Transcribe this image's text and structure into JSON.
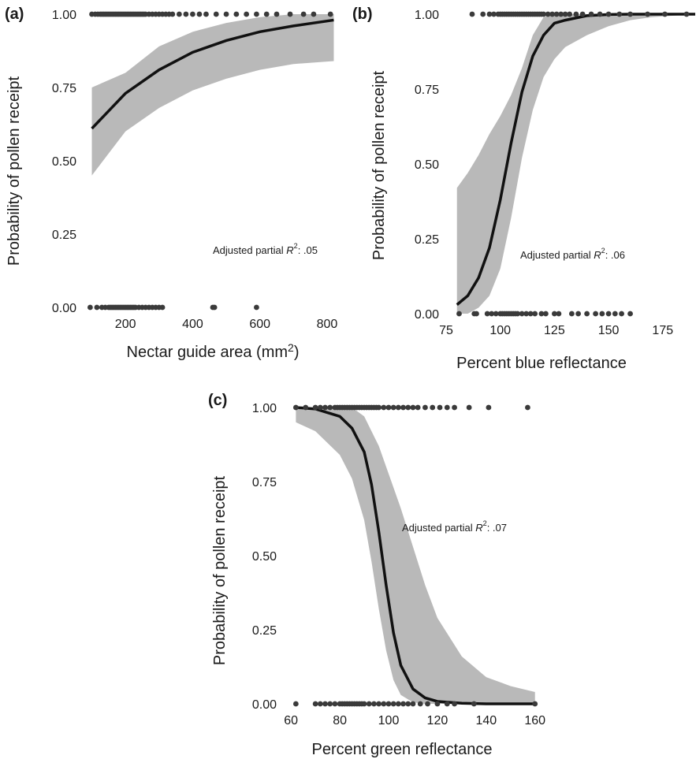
{
  "chart_data": [
    {
      "panel": "(a)",
      "type": "scatter",
      "xlabel": "Nectar guide area (mm²)",
      "ylabel": "Probability of pollen receipt",
      "xlim": [
        80,
        840
      ],
      "ylim": [
        0,
        1
      ],
      "xticks": [
        200,
        400,
        600,
        800
      ],
      "xtick_labels": [
        "200",
        "400",
        "600",
        "800"
      ],
      "yticks": [
        0,
        0.25,
        0.5,
        0.75,
        1
      ],
      "ytick_labels": [
        "0.00",
        "0.25",
        "0.50",
        "0.75",
        "1.00"
      ],
      "annotation": "Adjusted partial R²: .05",
      "fit": {
        "x": [
          100,
          200,
          300,
          400,
          500,
          600,
          700,
          820
        ],
        "y": [
          0.61,
          0.73,
          0.81,
          0.87,
          0.91,
          0.94,
          0.96,
          0.98
        ],
        "lower": [
          0.45,
          0.6,
          0.68,
          0.74,
          0.78,
          0.81,
          0.83,
          0.84
        ],
        "upper": [
          0.75,
          0.8,
          0.89,
          0.94,
          0.97,
          0.99,
          1.0,
          1.0
        ]
      },
      "points_y1": [
        100,
        110,
        118,
        125,
        130,
        135,
        140,
        145,
        150,
        155,
        160,
        165,
        170,
        175,
        180,
        185,
        190,
        195,
        200,
        205,
        210,
        215,
        220,
        225,
        230,
        235,
        240,
        245,
        250,
        255,
        260,
        270,
        280,
        290,
        300,
        310,
        320,
        330,
        340,
        360,
        380,
        400,
        420,
        440,
        470,
        500,
        530,
        560,
        590,
        620,
        650,
        690,
        730,
        760,
        810
      ],
      "points_y0": [
        95,
        115,
        130,
        140,
        150,
        155,
        160,
        165,
        170,
        175,
        180,
        185,
        190,
        195,
        200,
        205,
        210,
        215,
        220,
        225,
        230,
        240,
        250,
        260,
        270,
        280,
        290,
        300,
        310,
        460,
        465,
        590
      ]
    },
    {
      "panel": "(b)",
      "type": "scatter",
      "xlabel": "Percent blue reflectance",
      "ylabel": "Probability of pollen receipt",
      "xlim": [
        75,
        190
      ],
      "ylim": [
        0,
        1
      ],
      "xticks": [
        75,
        100,
        125,
        150,
        175
      ],
      "xtick_labels": [
        "75",
        "100",
        "125",
        "150",
        "175"
      ],
      "yticks": [
        0,
        0.25,
        0.5,
        0.75,
        1
      ],
      "ytick_labels": [
        "0.00",
        "0.25",
        "0.50",
        "0.75",
        "1.00"
      ],
      "annotation": "Adjusted partial R²: .06",
      "fit": {
        "x": [
          80,
          85,
          90,
          95,
          100,
          105,
          110,
          115,
          120,
          125,
          130,
          140,
          150,
          160,
          170,
          180,
          190
        ],
        "y": [
          0.03,
          0.06,
          0.12,
          0.22,
          0.38,
          0.57,
          0.74,
          0.86,
          0.93,
          0.97,
          0.98,
          0.995,
          0.999,
          1.0,
          1.0,
          1.0,
          1.0
        ],
        "lower": [
          0.0,
          0.0,
          0.02,
          0.06,
          0.15,
          0.32,
          0.52,
          0.68,
          0.79,
          0.85,
          0.89,
          0.93,
          0.96,
          0.98,
          0.99,
          0.995,
          1.0
        ],
        "upper": [
          0.42,
          0.47,
          0.53,
          0.6,
          0.66,
          0.73,
          0.82,
          0.93,
          0.99,
          1.0,
          1.0,
          1.0,
          1.0,
          1.0,
          1.0,
          1.0,
          1.0
        ]
      },
      "points_y1": [
        87,
        92,
        95,
        97,
        99,
        100,
        101,
        102,
        103,
        104,
        105,
        106,
        107,
        108,
        109,
        110,
        111,
        112,
        113,
        114,
        115,
        116,
        117,
        118,
        119,
        120,
        122,
        124,
        126,
        128,
        130,
        132,
        135,
        138,
        142,
        146,
        150,
        155,
        160,
        168,
        176,
        186
      ],
      "points_y0": [
        81,
        88,
        89,
        94,
        96,
        98,
        100,
        101,
        102,
        103,
        104,
        105,
        106,
        107,
        108,
        110,
        112,
        114,
        116,
        119,
        121,
        125,
        127,
        133,
        136,
        140,
        144,
        147,
        150,
        153,
        156,
        160
      ]
    },
    {
      "panel": "(c)",
      "type": "scatter",
      "xlabel": "Percent green reflectance",
      "ylabel": "Probability of pollen receipt",
      "xlim": [
        58,
        163
      ],
      "ylim": [
        0,
        1
      ],
      "xticks": [
        60,
        80,
        100,
        120,
        140,
        160
      ],
      "xtick_labels": [
        "60",
        "80",
        "100",
        "120",
        "140",
        "160"
      ],
      "yticks": [
        0,
        0.25,
        0.5,
        0.75,
        1
      ],
      "ytick_labels": [
        "0.00",
        "0.25",
        "0.50",
        "0.75",
        "1.00"
      ],
      "annotation": "Adjusted partial R²: .07",
      "fit": {
        "x": [
          62,
          70,
          80,
          85,
          90,
          93,
          96,
          99,
          102,
          105,
          110,
          115,
          120,
          130,
          140,
          150,
          160
        ],
        "y": [
          1.0,
          0.995,
          0.97,
          0.93,
          0.85,
          0.74,
          0.58,
          0.4,
          0.24,
          0.13,
          0.05,
          0.02,
          0.008,
          0.002,
          0.0,
          0.0,
          0.0
        ],
        "lower": [
          0.95,
          0.92,
          0.84,
          0.76,
          0.62,
          0.48,
          0.32,
          0.18,
          0.08,
          0.03,
          0.005,
          0.0,
          0.0,
          0.0,
          0.0,
          0.0,
          0.0
        ],
        "upper": [
          1.0,
          1.0,
          1.0,
          1.0,
          0.97,
          0.92,
          0.87,
          0.8,
          0.73,
          0.66,
          0.53,
          0.4,
          0.29,
          0.16,
          0.09,
          0.06,
          0.04
        ]
      },
      "points_y1": [
        62,
        66,
        70,
        72,
        74,
        76,
        78,
        79,
        80,
        81,
        82,
        83,
        84,
        85,
        86,
        87,
        88,
        89,
        90,
        91,
        92,
        93,
        94,
        95,
        96,
        98,
        100,
        102,
        104,
        106,
        108,
        110,
        112,
        115,
        118,
        121,
        124,
        127,
        133,
        141,
        157
      ],
      "points_y0": [
        62,
        70,
        72,
        74,
        76,
        78,
        80,
        81,
        82,
        83,
        84,
        85,
        86,
        87,
        88,
        89,
        90,
        92,
        94,
        96,
        98,
        100,
        102,
        104,
        106,
        108,
        110,
        113,
        116,
        120,
        124,
        127,
        135,
        160
      ]
    }
  ]
}
